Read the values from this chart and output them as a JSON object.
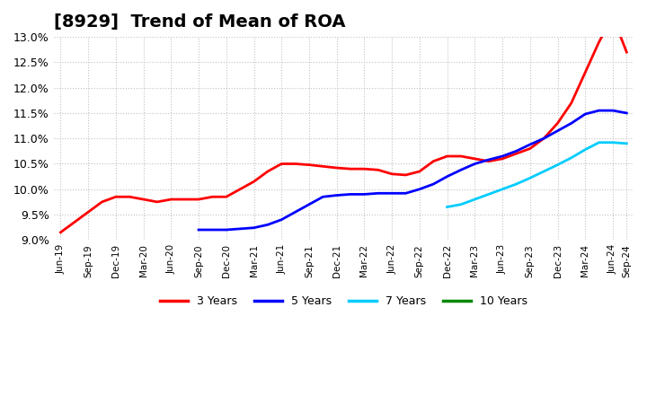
{
  "title": "[8929]  Trend of Mean of ROA",
  "ylabel": "",
  "background_color": "#ffffff",
  "grid_color": "#bbbbbb",
  "title_fontsize": 14,
  "ylim": [
    0.09,
    0.13
  ],
  "yticks": [
    0.09,
    0.095,
    0.1,
    0.105,
    0.11,
    0.115,
    0.12,
    0.125,
    0.13
  ],
  "series": {
    "3 Years": {
      "color": "#ff0000",
      "x": [
        0,
        1,
        2,
        3,
        4,
        5,
        6,
        7,
        8,
        9,
        10,
        11,
        12,
        13,
        14,
        15,
        16,
        17,
        18,
        19,
        20,
        21,
        22,
        23,
        24,
        25,
        26,
        27,
        28,
        29,
        30,
        31,
        32,
        33,
        34,
        35,
        36,
        37,
        38,
        39,
        40,
        41
      ],
      "y": [
        0.0915,
        0.0935,
        0.0955,
        0.0975,
        0.0985,
        0.0985,
        0.098,
        0.0975,
        0.098,
        0.098,
        0.098,
        0.0985,
        0.0985,
        0.1,
        0.1015,
        0.1035,
        0.105,
        0.105,
        0.1048,
        0.1045,
        0.1042,
        0.104,
        0.104,
        0.1038,
        0.103,
        0.1028,
        0.1035,
        0.1055,
        0.1065,
        0.1065,
        0.106,
        0.1055,
        0.106,
        0.107,
        0.108,
        0.11,
        0.113,
        0.117,
        0.123,
        0.129,
        0.134,
        0.127
      ]
    },
    "5 Years": {
      "color": "#0000ff",
      "x": [
        10,
        11,
        12,
        13,
        14,
        15,
        16,
        17,
        18,
        19,
        20,
        21,
        22,
        23,
        24,
        25,
        26,
        27,
        28,
        29,
        30,
        31,
        32,
        33,
        34,
        35,
        36,
        37,
        38,
        39,
        40,
        41
      ],
      "y": [
        0.092,
        0.092,
        0.092,
        0.0922,
        0.0924,
        0.093,
        0.094,
        0.0955,
        0.097,
        0.0985,
        0.0988,
        0.099,
        0.099,
        0.0992,
        0.0992,
        0.0992,
        0.1,
        0.101,
        0.1025,
        0.1038,
        0.105,
        0.1058,
        0.1065,
        0.1075,
        0.1088,
        0.11,
        0.1115,
        0.113,
        0.1148,
        0.1155,
        0.1155,
        0.115
      ]
    },
    "7 Years": {
      "color": "#00ccff",
      "x": [
        28,
        29,
        30,
        31,
        32,
        33,
        34,
        35,
        36,
        37,
        38,
        39,
        40,
        41
      ],
      "y": [
        0.0965,
        0.097,
        0.098,
        0.099,
        0.1,
        0.101,
        0.1022,
        0.1035,
        0.1048,
        0.1062,
        0.1078,
        0.1092,
        0.1092,
        0.109
      ]
    },
    "10 Years": {
      "color": "#008800",
      "x": [],
      "y": []
    }
  },
  "x_labels": [
    "Jun-19",
    "Sep-19",
    "Dec-19",
    "Mar-20",
    "Jun-20",
    "Sep-20",
    "Dec-20",
    "Mar-21",
    "Jun-21",
    "Sep-21",
    "Dec-21",
    "Mar-22",
    "Jun-22",
    "Sep-22",
    "Dec-22",
    "Mar-23",
    "Jun-23",
    "Sep-23",
    "Dec-23",
    "Mar-24",
    "Jun-24",
    "Sep-24"
  ],
  "x_label_indices": [
    0,
    2,
    4,
    6,
    8,
    10,
    12,
    14,
    16,
    18,
    20,
    22,
    24,
    26,
    28,
    30,
    32,
    34,
    36,
    38,
    40,
    41
  ],
  "legend_labels": [
    "3 Years",
    "5 Years",
    "7 Years",
    "10 Years"
  ],
  "legend_colors": [
    "#ff0000",
    "#0000ff",
    "#00ccff",
    "#008800"
  ]
}
